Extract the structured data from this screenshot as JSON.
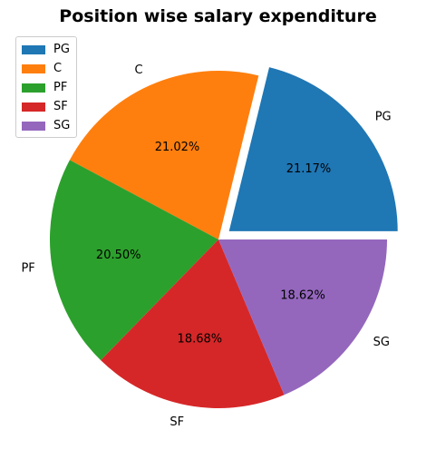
{
  "chart_data": {
    "type": "pie",
    "title": "Position wise salary expenditure",
    "categories": [
      "PG",
      "C",
      "PF",
      "SF",
      "SG"
    ],
    "values": [
      21.17,
      21.02,
      20.5,
      18.68,
      18.62
    ],
    "percent_labels": [
      "21.17%",
      "21.02%",
      "20.50%",
      "18.68%",
      "18.62%"
    ],
    "colors": [
      "#1f77b4",
      "#ff7f0e",
      "#2ca02c",
      "#d62728",
      "#9467bd"
    ],
    "explode": [
      0.08,
      0,
      0,
      0,
      0
    ],
    "start_angle_deg": 0,
    "direction": "counterclockwise",
    "legend": {
      "position": "upper-left",
      "entries": [
        "PG",
        "C",
        "PF",
        "SF",
        "SG"
      ]
    }
  }
}
